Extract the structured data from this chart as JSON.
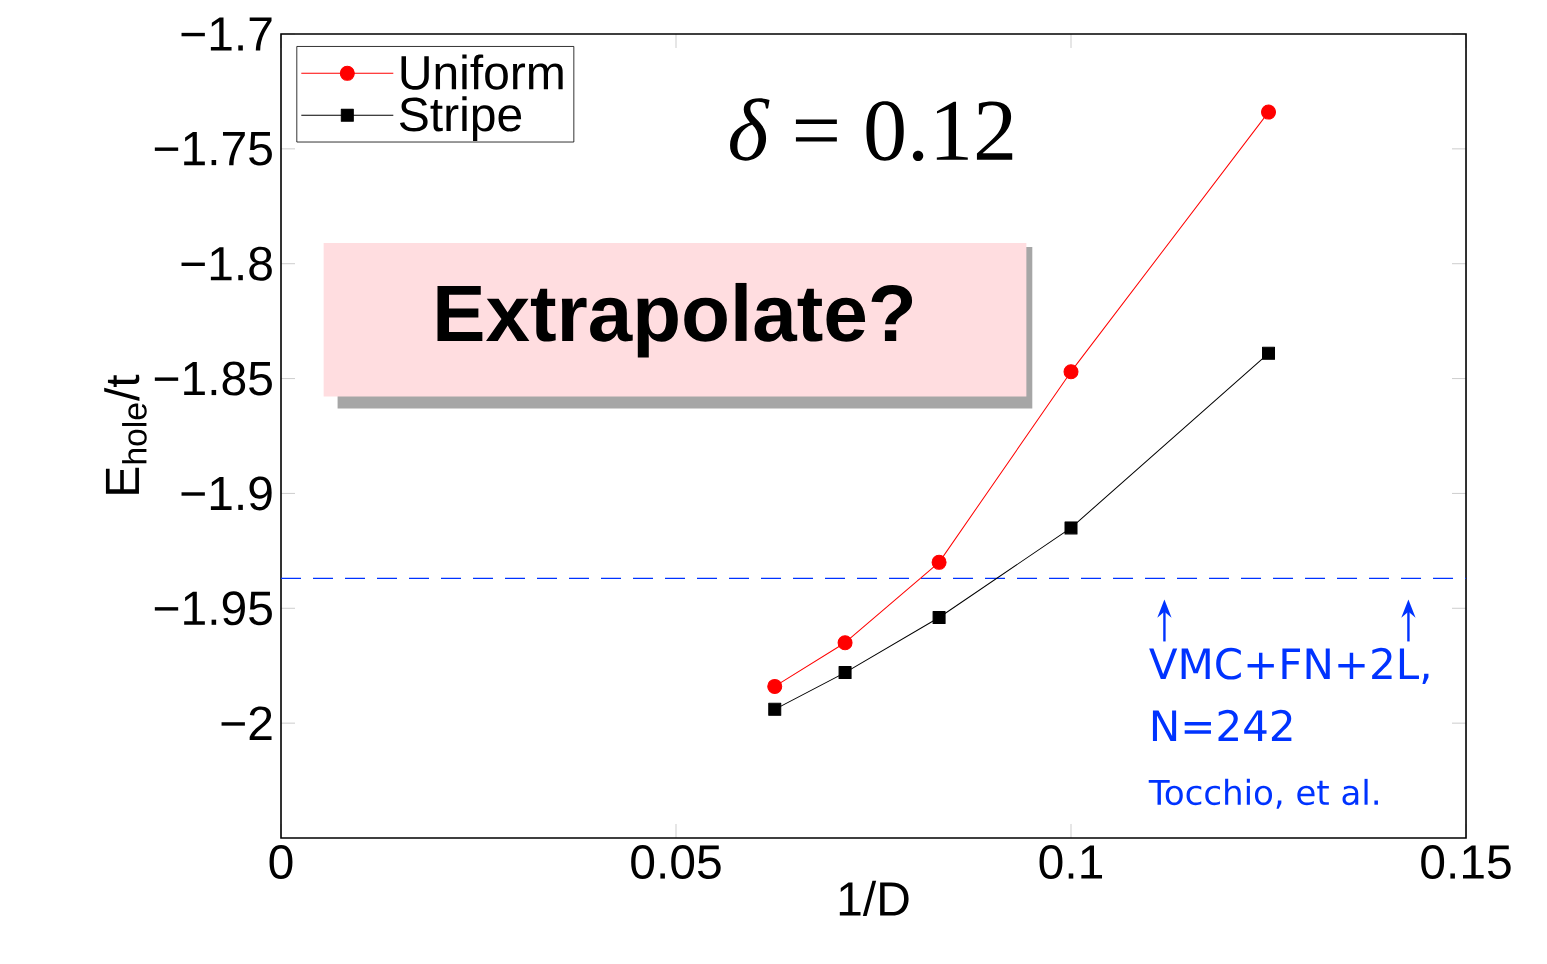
{
  "chart_data": {
    "type": "line",
    "xlabel": "1/D",
    "ylabel": "E$_{hole}$/t",
    "x": [
      0.0625,
      0.0714,
      0.0833,
      0.1,
      0.125
    ],
    "series": [
      {
        "name": "Uniform",
        "color": "#ff0000",
        "marker": "circle",
        "values": [
          -1.984,
          -1.965,
          -1.93,
          -1.847,
          -1.734
        ]
      },
      {
        "name": "Stripe",
        "color": "#000000",
        "marker": "square",
        "values": [
          -1.994,
          -1.978,
          -1.954,
          -1.915,
          -1.839
        ]
      }
    ],
    "xlim": [
      0,
      0.15
    ],
    "ylim": [
      -2.05,
      -1.7
    ],
    "xticks": [
      0,
      0.05,
      0.1,
      0.15
    ],
    "yticks": [
      {
        "value": -1.7,
        "label": "−1.7"
      },
      {
        "value": -1.75,
        "label": "−1.75"
      },
      {
        "value": -1.8,
        "label": "−1.8"
      },
      {
        "value": -1.85,
        "label": "−1.85"
      },
      {
        "value": -1.9,
        "label": "−1.9"
      },
      {
        "value": -1.95,
        "label": "−1.95"
      },
      {
        "value": -2,
        "label": "−2"
      }
    ],
    "ref_lines": [
      {
        "axis": "y",
        "value": -1.937,
        "color": "#0033ff",
        "line_style": "dashed"
      }
    ],
    "annotations": [
      "*δ* = 0.12",
      "Extrapolate?",
      "VMC+FN+2L, N=242",
      "Tocchio, et al."
    ],
    "legend": "top left",
    "grid": false,
    "line_style": "solid"
  }
}
